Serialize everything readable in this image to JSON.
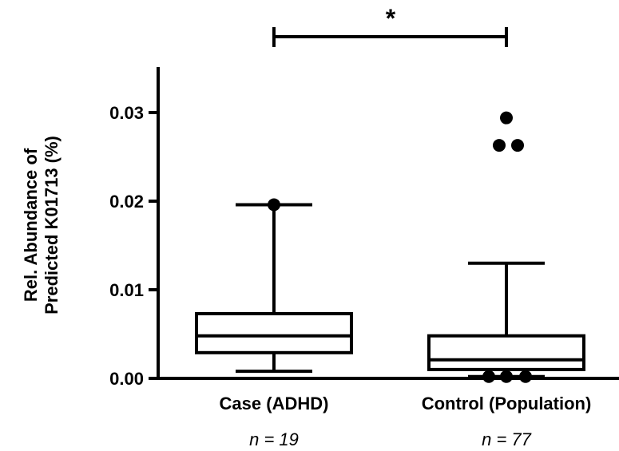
{
  "chart_data": {
    "type": "boxplot",
    "ylabel_line1": "Rel. Abundance of",
    "ylabel_line2": "Predicted K01713 (%)",
    "ylim": [
      0,
      0.035
    ],
    "yticks": [
      "0.00",
      "0.01",
      "0.02",
      "0.03"
    ],
    "ytick_values": [
      0,
      0.01,
      0.02,
      0.03
    ],
    "categories": [
      "Case (ADHD)",
      "Control (Population)"
    ],
    "sample_sizes": [
      "n = 19",
      "n = 77"
    ],
    "significance": "*",
    "boxes": [
      {
        "name": "Case (ADHD)",
        "whisker_low": 0.0008,
        "q1": 0.0029,
        "median": 0.0048,
        "q3": 0.0073,
        "whisker_high": 0.0196,
        "outliers": [
          0.0196
        ]
      },
      {
        "name": "Control (Population)",
        "whisker_low": 0.0002,
        "q1": 0.001,
        "median": 0.0021,
        "q3": 0.0048,
        "whisker_high": 0.013,
        "outliers": [
          0.0002,
          0.0002,
          0.0002,
          0.0263,
          0.0263,
          0.0294
        ]
      }
    ],
    "grid": false,
    "legend": "none",
    "color": "#000000"
  }
}
